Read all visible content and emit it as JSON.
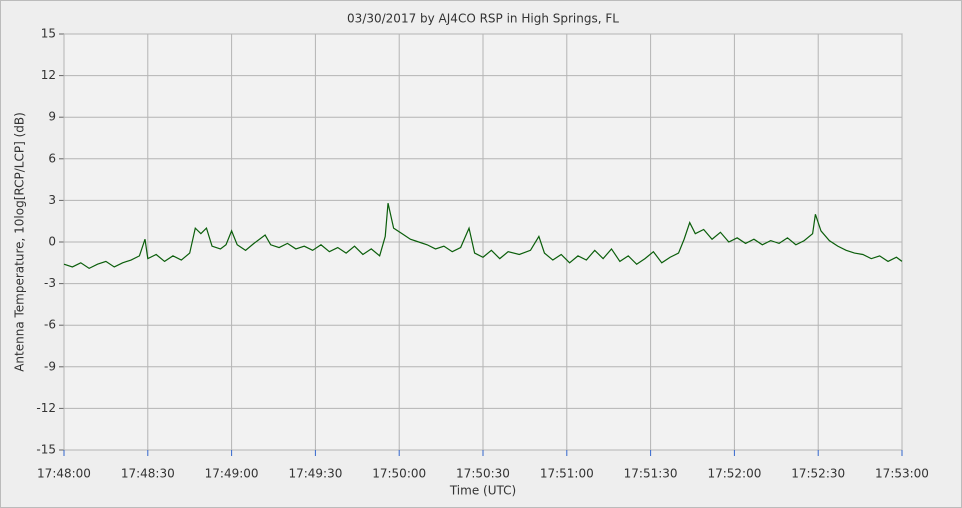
{
  "chart_data": {
    "type": "line",
    "title": "03/30/2017  by  AJ4CO RSP  in  High Springs, FL",
    "x_label": "Time (UTC)",
    "y_label": "Antenna Temperature, 10log[RCP/LCP] (dB)",
    "color": "#0b5e0b",
    "grid": true,
    "xlim": [
      "17:48:00",
      "17:53:00"
    ],
    "xticks": [
      "17:48:00",
      "17:48:30",
      "17:49:00",
      "17:49:30",
      "17:50:00",
      "17:50:30",
      "17:51:00",
      "17:51:30",
      "17:52:00",
      "17:52:30",
      "17:53:00"
    ],
    "ylim": [
      -15,
      15
    ],
    "yticks": [
      -15,
      -12,
      -9,
      -6,
      -3,
      0,
      3,
      6,
      9,
      12,
      15
    ],
    "x": [
      "17:48:00",
      "17:48:03",
      "17:48:06",
      "17:48:09",
      "17:48:12",
      "17:48:15",
      "17:48:18",
      "17:48:21",
      "17:48:24",
      "17:48:27",
      "17:48:29",
      "17:48:30",
      "17:48:33",
      "17:48:36",
      "17:48:39",
      "17:48:42",
      "17:48:45",
      "17:48:47",
      "17:48:49",
      "17:48:51",
      "17:48:53",
      "17:48:56",
      "17:48:58",
      "17:49:00",
      "17:49:02",
      "17:49:05",
      "17:49:08",
      "17:49:12",
      "17:49:14",
      "17:49:17",
      "17:49:20",
      "17:49:23",
      "17:49:26",
      "17:49:29",
      "17:49:32",
      "17:49:35",
      "17:49:38",
      "17:49:41",
      "17:49:44",
      "17:49:47",
      "17:49:50",
      "17:49:53",
      "17:49:55",
      "17:49:56",
      "17:49:58",
      "17:50:01",
      "17:50:04",
      "17:50:07",
      "17:50:10",
      "17:50:13",
      "17:50:16",
      "17:50:19",
      "17:50:22",
      "17:50:25",
      "17:50:27",
      "17:50:30",
      "17:50:33",
      "17:50:36",
      "17:50:39",
      "17:50:43",
      "17:50:47",
      "17:50:50",
      "17:50:52",
      "17:50:55",
      "17:50:58",
      "17:51:01",
      "17:51:04",
      "17:51:07",
      "17:51:10",
      "17:51:13",
      "17:51:16",
      "17:51:19",
      "17:51:22",
      "17:51:25",
      "17:51:28",
      "17:51:31",
      "17:51:34",
      "17:51:37",
      "17:51:40",
      "17:51:42",
      "17:51:44",
      "17:51:46",
      "17:51:49",
      "17:51:52",
      "17:51:55",
      "17:51:58",
      "17:52:01",
      "17:52:04",
      "17:52:07",
      "17:52:10",
      "17:52:13",
      "17:52:16",
      "17:52:19",
      "17:52:22",
      "17:52:25",
      "17:52:28",
      "17:52:29",
      "17:52:31",
      "17:52:34",
      "17:52:37",
      "17:52:40",
      "17:52:43",
      "17:52:46",
      "17:52:49",
      "17:52:52",
      "17:52:55",
      "17:52:58",
      "17:53:00"
    ],
    "values": [
      -1.6,
      -1.8,
      -1.5,
      -1.9,
      -1.6,
      -1.4,
      -1.8,
      -1.5,
      -1.3,
      -1.0,
      0.2,
      -1.2,
      -0.9,
      -1.4,
      -1.0,
      -1.3,
      -0.8,
      1.0,
      0.6,
      1.0,
      -0.3,
      -0.5,
      -0.2,
      0.8,
      -0.2,
      -0.6,
      -0.1,
      0.5,
      -0.2,
      -0.4,
      -0.1,
      -0.5,
      -0.3,
      -0.6,
      -0.2,
      -0.7,
      -0.4,
      -0.8,
      -0.3,
      -0.9,
      -0.5,
      -1.0,
      0.4,
      2.8,
      1.0,
      0.6,
      0.2,
      0.0,
      -0.2,
      -0.5,
      -0.3,
      -0.7,
      -0.4,
      1.0,
      -0.8,
      -1.1,
      -0.6,
      -1.2,
      -0.7,
      -0.9,
      -0.6,
      0.4,
      -0.8,
      -1.3,
      -0.9,
      -1.5,
      -1.0,
      -1.3,
      -0.6,
      -1.2,
      -0.5,
      -1.4,
      -1.0,
      -1.6,
      -1.2,
      -0.7,
      -1.5,
      -1.1,
      -0.8,
      0.2,
      1.4,
      0.6,
      0.9,
      0.2,
      0.7,
      0.0,
      0.3,
      -0.1,
      0.2,
      -0.2,
      0.1,
      -0.1,
      0.3,
      -0.2,
      0.1,
      0.6,
      2.0,
      0.8,
      0.1,
      -0.3,
      -0.6,
      -0.8,
      -0.9,
      -1.2,
      -1.0,
      -1.4,
      -1.1,
      -1.4
    ]
  }
}
